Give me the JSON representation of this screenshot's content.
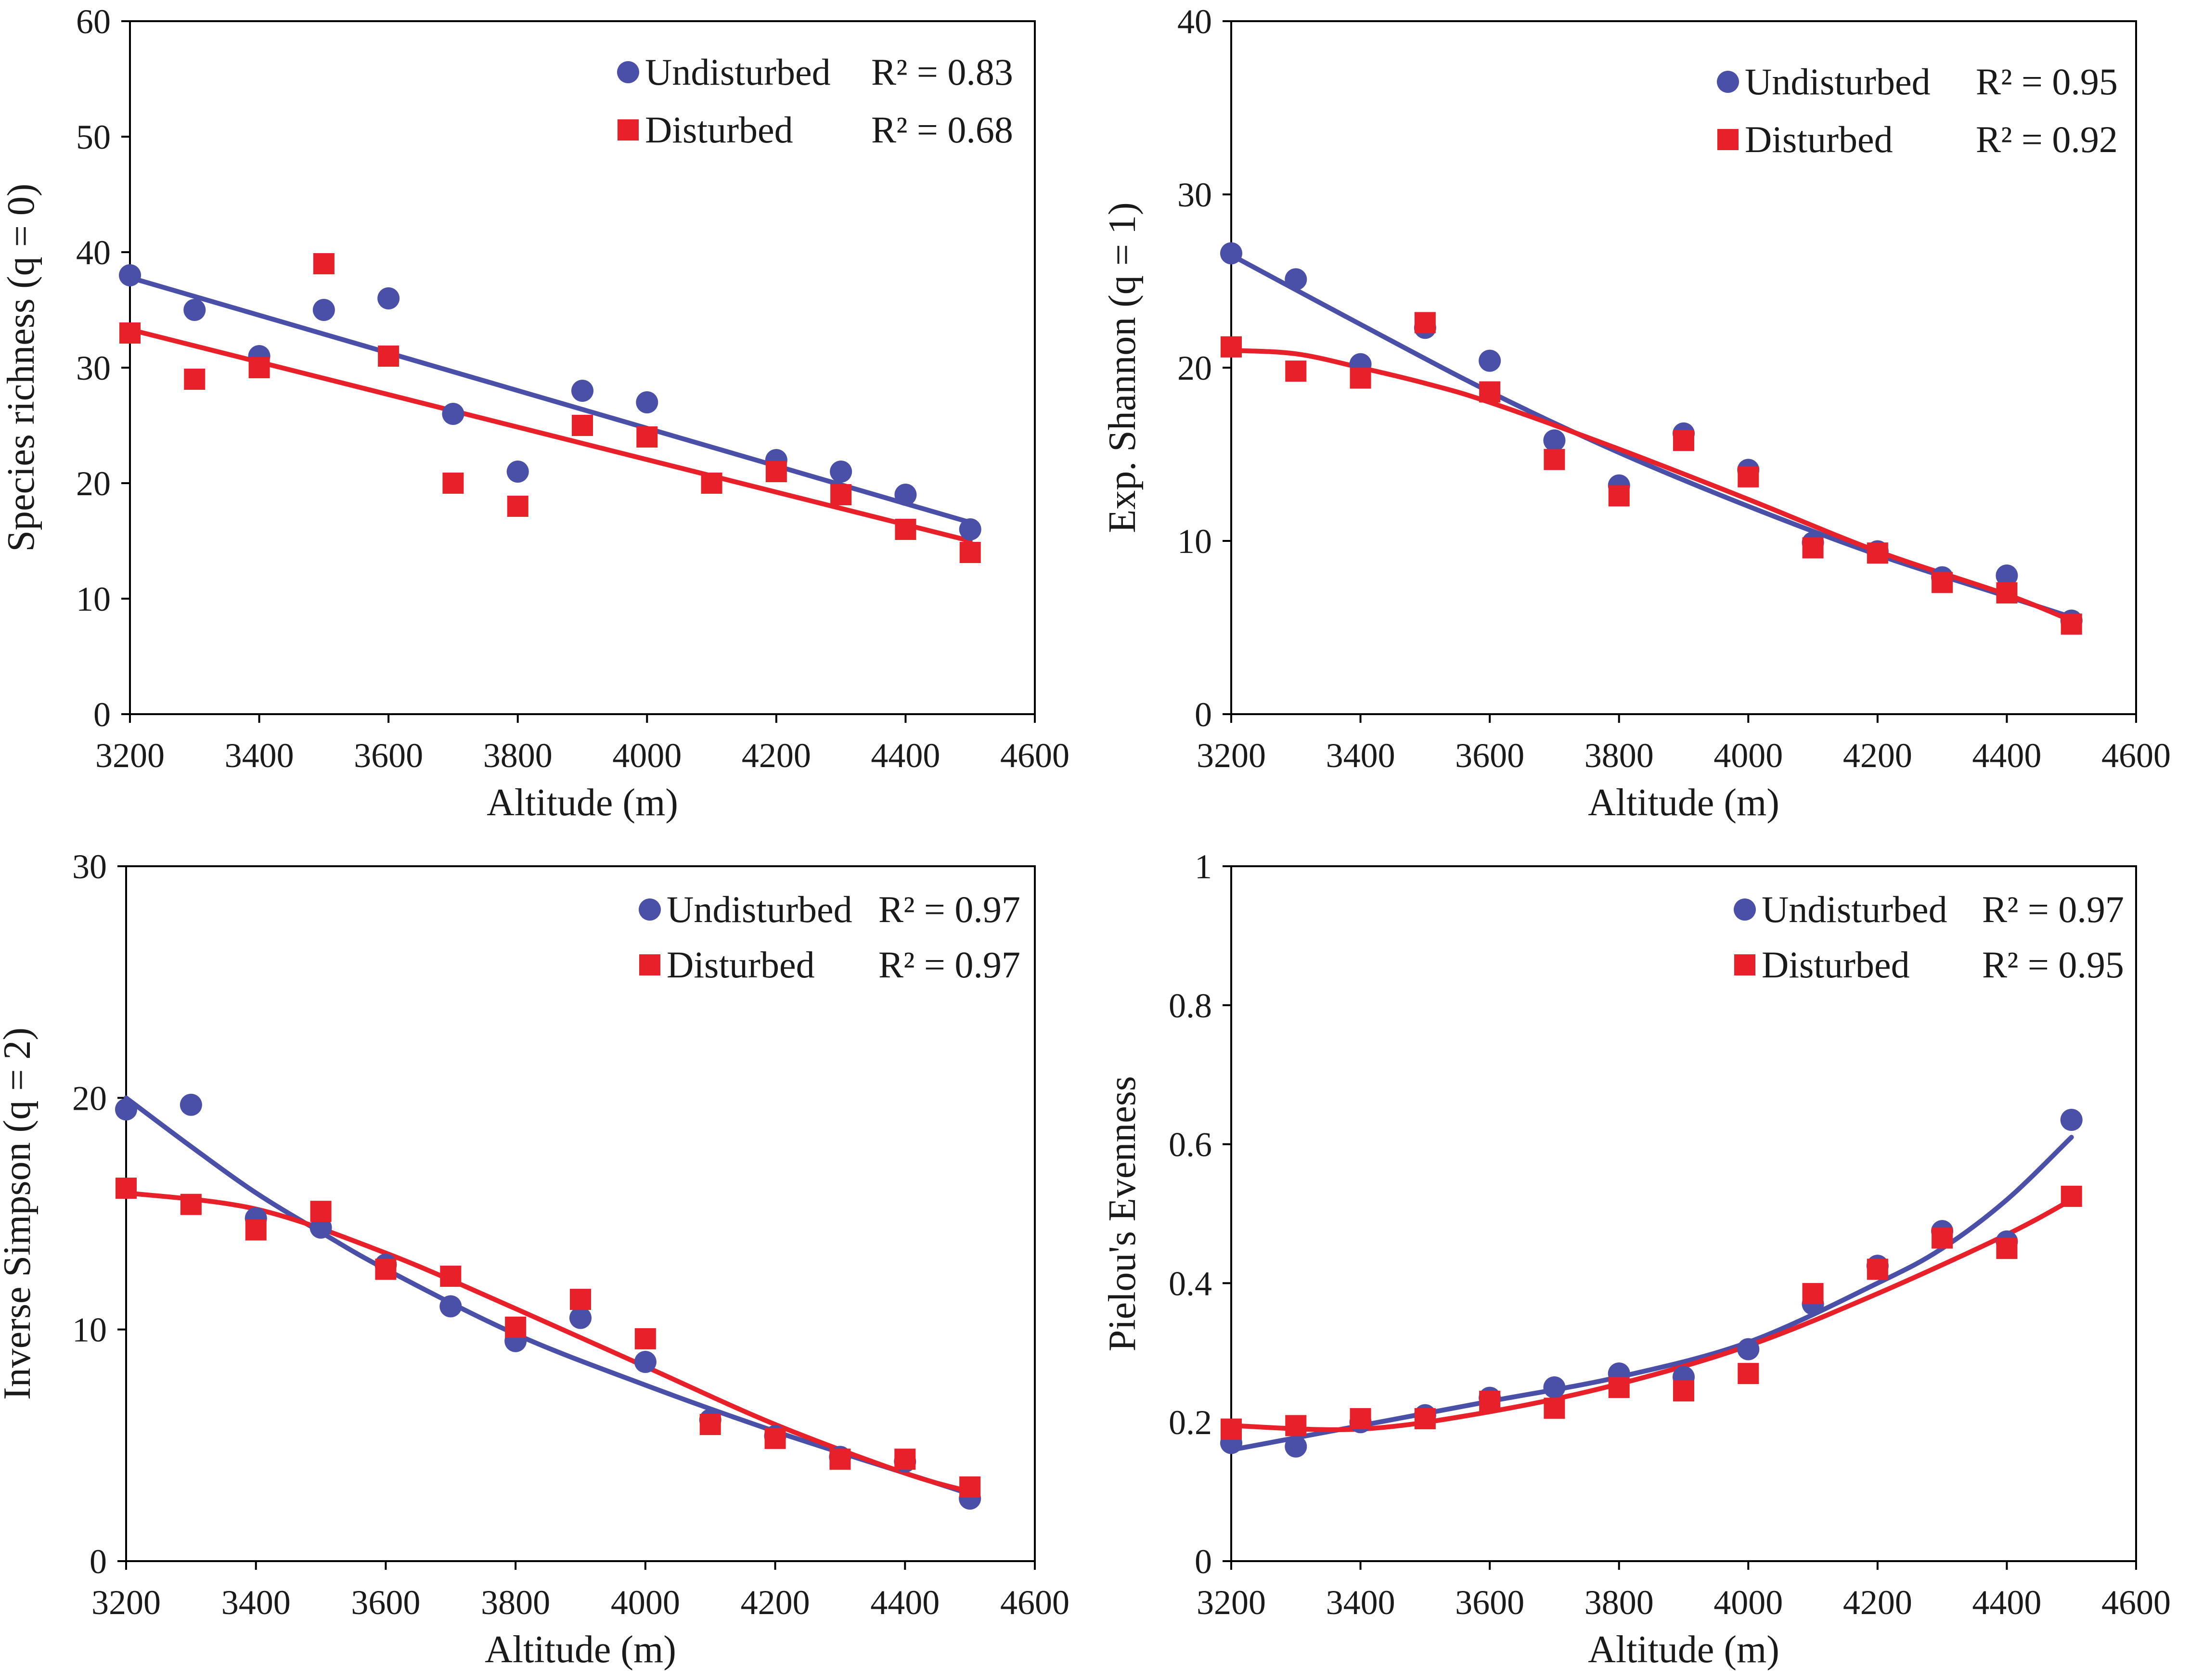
{
  "colors": {
    "undisturbed": "#4a4fa8",
    "disturbed": "#e8202a"
  },
  "chart_data": [
    {
      "type": "scatter",
      "xlabel": "Altitude (m)",
      "ylabel": "Species richness (q = 0)",
      "xlim": [
        3200,
        4600
      ],
      "ylim": [
        0,
        60
      ],
      "xticks": [
        "3200",
        "3400",
        "3600",
        "3800",
        "4000",
        "4200",
        "4400",
        "4600"
      ],
      "yticks": [
        "0",
        "10",
        "20",
        "30",
        "40",
        "50",
        "60"
      ],
      "x": [
        3200,
        3300,
        3400,
        3500,
        3600,
        3700,
        3800,
        3900,
        4000,
        4100,
        4200,
        4300,
        4400,
        4500
      ],
      "series": [
        {
          "name": "Undisturbed",
          "r2": "R² = 0.83",
          "marker": "circle",
          "values": [
            38,
            35,
            31,
            35,
            36,
            26,
            21,
            28,
            27,
            null,
            22,
            21,
            19,
            16
          ],
          "fit": [
            [
              3200,
              37.8
            ],
            [
              4500,
              16.6
            ]
          ]
        },
        {
          "name": "Disturbed",
          "r2": "R² = 0.68",
          "marker": "square",
          "values": [
            33,
            29,
            30,
            39,
            31,
            20,
            18,
            25,
            24,
            20,
            21,
            19,
            16,
            14
          ],
          "fit": [
            [
              3200,
              33.3
            ],
            [
              4500,
              15.0
            ]
          ]
        }
      ]
    },
    {
      "type": "scatter",
      "xlabel": "Altitude (m)",
      "ylabel": "Exp. Shannon (q = 1)",
      "xlim": [
        3200,
        4600
      ],
      "ylim": [
        0,
        40
      ],
      "xticks": [
        "3200",
        "3400",
        "3600",
        "3800",
        "4000",
        "4200",
        "4400",
        "4600"
      ],
      "yticks": [
        "0",
        "10",
        "20",
        "30",
        "40"
      ],
      "x": [
        3200,
        3300,
        3400,
        3500,
        3600,
        3700,
        3800,
        3900,
        4000,
        4100,
        4200,
        4300,
        4400,
        4500
      ],
      "series": [
        {
          "name": "Undisturbed",
          "r2": "R² = 0.95",
          "marker": "circle",
          "values": [
            26.6,
            25.1,
            20.2,
            22.3,
            20.4,
            15.8,
            13.2,
            16.2,
            14.1,
            9.9,
            9.4,
            7.9,
            8.0,
            5.4
          ],
          "fit": [
            [
              3200,
              26.5
            ],
            [
              3400,
              22.5
            ],
            [
              3600,
              18.6
            ],
            [
              3800,
              15.1
            ],
            [
              4000,
              12.0
            ],
            [
              4200,
              9.2
            ],
            [
              4400,
              6.8
            ],
            [
              4500,
              5.6
            ]
          ]
        },
        {
          "name": "Disturbed",
          "r2": "R² = 0.92",
          "marker": "square",
          "values": [
            21.2,
            19.8,
            19.4,
            22.6,
            18.6,
            14.7,
            12.6,
            15.8,
            13.7,
            9.6,
            9.3,
            7.6,
            7.0,
            5.2
          ],
          "fit": [
            [
              3200,
              21.0
            ],
            [
              3300,
              20.8
            ],
            [
              3400,
              20.0
            ],
            [
              3500,
              19.1
            ],
            [
              3600,
              18.0
            ],
            [
              3800,
              15.3
            ],
            [
              4000,
              12.4
            ],
            [
              4200,
              9.4
            ],
            [
              4400,
              6.9
            ],
            [
              4500,
              5.4
            ]
          ]
        }
      ]
    },
    {
      "type": "scatter",
      "xlabel": "Altitude (m)",
      "ylabel": "Inverse Simpson (q = 2)",
      "xlim": [
        3200,
        4600
      ],
      "ylim": [
        0,
        30
      ],
      "xticks": [
        "3200",
        "3400",
        "3600",
        "3800",
        "4000",
        "4200",
        "4400",
        "4600"
      ],
      "yticks": [
        "0",
        "10",
        "20",
        "30"
      ],
      "x": [
        3200,
        3300,
        3400,
        3500,
        3600,
        3700,
        3800,
        3900,
        4000,
        4100,
        4200,
        4300,
        4400,
        4500
      ],
      "series": [
        {
          "name": "Undisturbed",
          "r2": "R² = 0.97",
          "marker": "circle",
          "values": [
            19.5,
            19.7,
            14.8,
            14.4,
            12.8,
            11.0,
            9.5,
            10.5,
            8.6,
            6.1,
            5.4,
            4.5,
            4.3,
            2.7
          ],
          "fit": [
            [
              3200,
              20.0
            ],
            [
              3300,
              17.9
            ],
            [
              3400,
              15.9
            ],
            [
              3500,
              14.2
            ],
            [
              3600,
              12.6
            ],
            [
              3800,
              9.8
            ],
            [
              4000,
              7.6
            ],
            [
              4200,
              5.6
            ],
            [
              4400,
              3.8
            ],
            [
              4500,
              2.9
            ]
          ]
        },
        {
          "name": "Disturbed",
          "r2": "R² = 0.97",
          "marker": "square",
          "values": [
            16.1,
            15.4,
            14.3,
            15.1,
            12.6,
            12.3,
            10.1,
            11.3,
            9.6,
            5.9,
            5.3,
            4.4,
            4.4,
            3.2
          ],
          "fit": [
            [
              3200,
              15.9
            ],
            [
              3400,
              15.2
            ],
            [
              3600,
              13.3
            ],
            [
              3800,
              10.9
            ],
            [
              4000,
              8.4
            ],
            [
              4200,
              5.9
            ],
            [
              4400,
              3.8
            ],
            [
              4500,
              3.0
            ]
          ]
        }
      ]
    },
    {
      "type": "scatter",
      "xlabel": "Altitude (m)",
      "ylabel": "Pielou's Evenness",
      "xlim": [
        3200,
        4600
      ],
      "ylim": [
        0,
        1
      ],
      "xticks": [
        "3200",
        "3400",
        "3600",
        "3800",
        "4000",
        "4200",
        "4400",
        "4600"
      ],
      "yticks": [
        "0",
        "0.2",
        "0.4",
        "0.6",
        "0.8",
        "1"
      ],
      "x": [
        3200,
        3300,
        3400,
        3500,
        3600,
        3700,
        3800,
        3900,
        4000,
        4100,
        4200,
        4300,
        4400,
        4500
      ],
      "series": [
        {
          "name": "Undisturbed",
          "r2": "R² = 0.97",
          "marker": "circle",
          "values": [
            0.17,
            0.165,
            0.2,
            0.21,
            0.235,
            0.25,
            0.27,
            0.265,
            0.305,
            0.37,
            0.425,
            0.475,
            0.46,
            0.635
          ],
          "fit": [
            [
              3200,
              0.16
            ],
            [
              3400,
              0.195
            ],
            [
              3600,
              0.23
            ],
            [
              3800,
              0.265
            ],
            [
              4000,
              0.315
            ],
            [
              4200,
              0.4
            ],
            [
              4300,
              0.45
            ],
            [
              4400,
              0.52
            ],
            [
              4500,
              0.61
            ]
          ]
        },
        {
          "name": "Disturbed",
          "r2": "R² = 0.95",
          "marker": "square",
          "values": [
            0.19,
            0.195,
            0.205,
            0.205,
            0.23,
            0.22,
            0.25,
            0.245,
            0.27,
            0.385,
            0.42,
            0.465,
            0.45,
            0.525
          ],
          "fit": [
            [
              3200,
              0.195
            ],
            [
              3400,
              0.19
            ],
            [
              3600,
              0.215
            ],
            [
              3800,
              0.255
            ],
            [
              4000,
              0.31
            ],
            [
              4200,
              0.385
            ],
            [
              4400,
              0.47
            ],
            [
              4500,
              0.52
            ]
          ]
        }
      ]
    }
  ]
}
